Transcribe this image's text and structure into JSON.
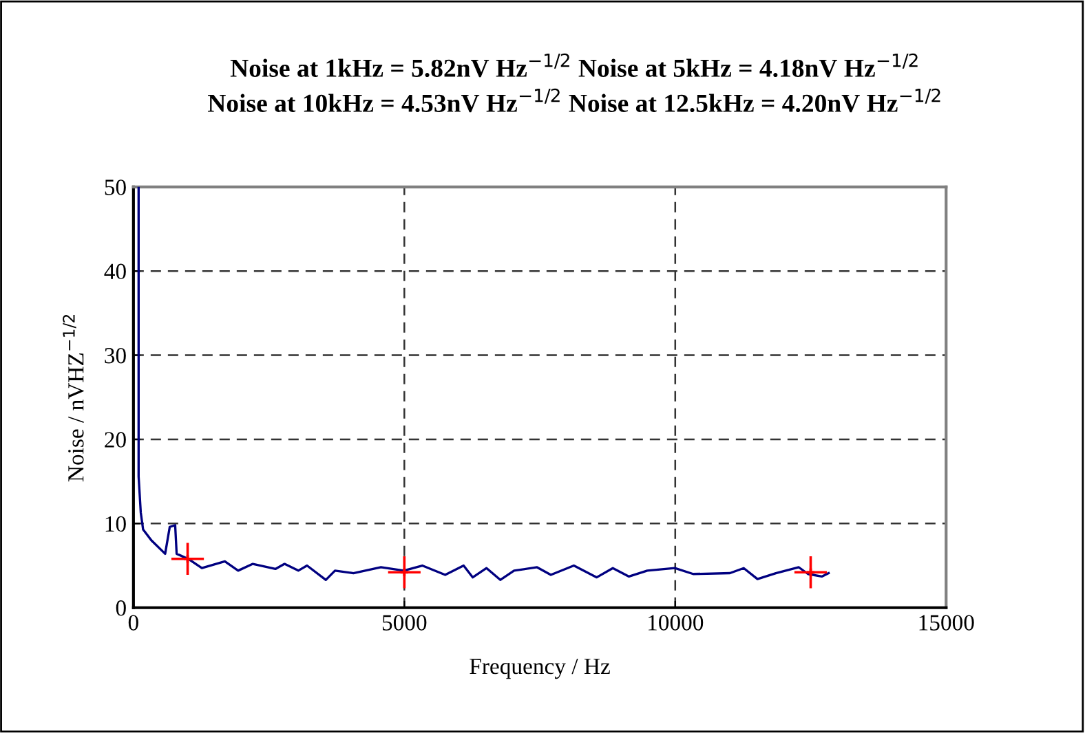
{
  "chart_data": {
    "type": "line",
    "title": "Noise at 1kHz = 5.82nV Hz$^{−1/2}$ Noise at 5kHz = 4.18nV Hz$^{−1/2}$\nNoise at 10kHz = 4.53nV Hz$^{−1/2}$ Noise at 12.5kHz = 4.20nV Hz$^{−1/2}$",
    "xlabel": "Frequency / Hz",
    "ylabel": "Noise / nVHZ$^{−1/2}$",
    "xlim": [
      0,
      15000
    ],
    "xticks": [
      0,
      5000,
      10000,
      15000
    ],
    "ylim": [
      0,
      50
    ],
    "yticks": [
      0,
      10,
      20,
      30,
      40,
      50
    ],
    "grid": true,
    "legend": false,
    "series": [
      {
        "color": "#000080",
        "marker": "none",
        "line_style": "solid",
        "x": [
          95,
          95,
          135,
          178,
          330,
          585,
          670,
          770,
          797,
          1009,
          1263,
          1687,
          1932,
          2203,
          2620,
          2789,
          3043,
          3204,
          3551,
          3720,
          4060,
          4568,
          4991,
          5331,
          5754,
          6094,
          6263,
          6517,
          6771,
          7025,
          7450,
          7704,
          8129,
          8551,
          8848,
          9146,
          9484,
          9992,
          10331,
          11010,
          11264,
          11518,
          11857,
          12281,
          12451,
          12705,
          12832
        ],
        "values": [
          50,
          15.6,
          11.3,
          9.3,
          8.0,
          6.4,
          9.6,
          9.8,
          6.4,
          5.8,
          4.7,
          5.5,
          4.4,
          5.2,
          4.6,
          5.2,
          4.4,
          5.0,
          3.3,
          4.4,
          4.1,
          4.8,
          4.4,
          5.0,
          3.9,
          5.0,
          3.6,
          4.7,
          3.3,
          4.4,
          4.8,
          3.9,
          5.0,
          3.6,
          4.7,
          3.7,
          4.4,
          4.7,
          4.0,
          4.1,
          4.7,
          3.4,
          4.1,
          4.8,
          4.0,
          3.7,
          4.1
        ]
      },
      {
        "type": "scatter",
        "color": "#ff0000",
        "marker": "cross",
        "x": [
          1000,
          5000,
          12500
        ],
        "values": [
          5.8,
          4.2,
          4.2
        ],
        "errors": [
          1.9,
          1.9,
          1.9
        ],
        "xerrors": [
          300,
          300,
          300
        ]
      }
    ]
  }
}
